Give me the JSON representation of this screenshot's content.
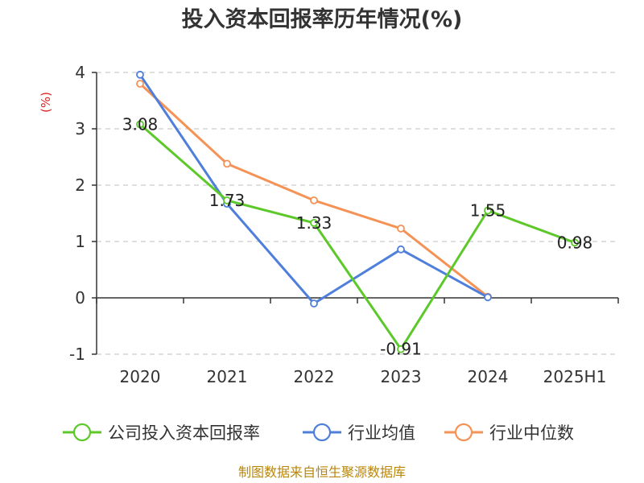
{
  "chart_data": {
    "type": "line",
    "title": "投入资本回报率历年情况(%)",
    "ylabel": "(%)",
    "categories": [
      "2020",
      "2021",
      "2022",
      "2023",
      "2024",
      "2025H1"
    ],
    "yticks": [
      "-1",
      "0",
      "1",
      "2",
      "3",
      "4"
    ],
    "ylim": [
      -1,
      4
    ],
    "grid": true,
    "legend_position": "bottom",
    "series": [
      {
        "name": "公司投入资本回报率",
        "color": "#5cc82a",
        "values": [
          3.08,
          1.73,
          1.33,
          -0.91,
          1.55,
          0.98
        ],
        "labels": [
          "3.08",
          "1.73",
          "1.33",
          "-0.91",
          "1.55",
          "0.98"
        ]
      },
      {
        "name": "行业均值",
        "color": "#4f7fdb",
        "values": [
          3.96,
          1.67,
          -0.1,
          0.86,
          0.01,
          null
        ]
      },
      {
        "name": "行业中位数",
        "color": "#f59256",
        "values": [
          3.8,
          2.38,
          1.73,
          1.23,
          0.02,
          null
        ]
      }
    ]
  },
  "source": "制图数据来自恒生聚源数据库"
}
